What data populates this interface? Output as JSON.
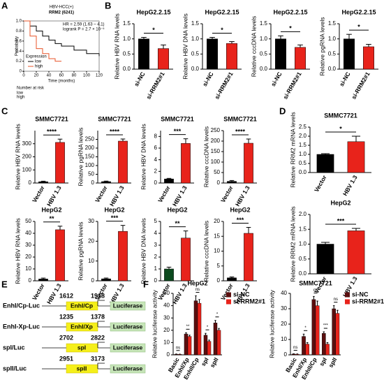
{
  "panel_letters": [
    "A",
    "B",
    "C",
    "D",
    "E",
    "F"
  ],
  "constructs": {
    "luciferase": "Luciferase",
    "items": [
      {
        "name": "EnhI/Cp-Luc",
        "start": "1612",
        "end": "1918",
        "element": "EnhI/Cp"
      },
      {
        "name": "EnhI-Xp-Luc",
        "start": "1235",
        "end": "1378",
        "element": "EnhI/Xp"
      },
      {
        "name": "spI/Luc",
        "start": "2702",
        "end": "2822",
        "element": "spI"
      },
      {
        "name": "spII/Luc",
        "start": "2951",
        "end": "3173",
        "element": "spII"
      }
    ]
  },
  "chart_data": [
    {
      "type": "line",
      "title": "HBV-HCC(+)",
      "subtitle": "RRM2 (6241)",
      "annotations": [
        "HR = 2.59 (1.63 – 4.1)",
        "logrank P = 2.7 × 10⁻⁵"
      ],
      "xlabel": "Time (months)",
      "ylabel": "Probability",
      "legend_title": "Expression",
      "footer": "Number at risk",
      "xlim": [
        0,
        120
      ],
      "xticks": [
        0,
        20,
        40,
        60,
        80,
        100,
        120
      ],
      "ylim": [
        0,
        1
      ],
      "yticks": [
        0,
        {
          "value": 0.2,
          "label": "0.2"
        },
        {
          "value": 0.4,
          "label": "0.4"
        },
        {
          "value": 0.6,
          "label": "0.6"
        },
        {
          "value": 0.8,
          "label": "0.8"
        },
        {
          "value": 1,
          "label": "1.0"
        }
      ],
      "series": [
        {
          "name": "low",
          "color": "#000000",
          "x": [
            0,
            10,
            20,
            30,
            40,
            50,
            60,
            80,
            100,
            120
          ],
          "values": [
            1,
            0.9,
            0.8,
            0.7,
            0.62,
            0.55,
            0.5,
            0.42,
            0.35,
            0.3
          ]
        },
        {
          "name": "high",
          "color": "#e8542a",
          "x": [
            0,
            10,
            20,
            30,
            40,
            50,
            60
          ],
          "values": [
            1,
            0.7,
            0.45,
            0.35,
            0.25,
            0.2,
            0.2
          ]
        }
      ]
    },
    {
      "type": "bar",
      "title": "HepG2.2.15",
      "ylabel": "Relative HBV RNA levels",
      "categories": [
        "si-NC",
        "si-RRM2#1"
      ],
      "values": [
        1.0,
        0.68
      ],
      "errors": [
        0.05,
        0.12
      ],
      "colors": [
        "#000000",
        "#e8231b"
      ],
      "annotations": [
        "*"
      ],
      "ylim": [
        0,
        1.5
      ],
      "yticks": [
        {
          "value": 0,
          "label": "0.0"
        },
        {
          "value": 0.5,
          "label": "0.5"
        },
        {
          "value": 1,
          "label": "1.0"
        },
        {
          "value": 1.5,
          "label": "1.5"
        }
      ]
    },
    {
      "type": "bar",
      "title": "HepG2.2.15",
      "ylabel": "Relative HBV DNA levels",
      "categories": [
        "si-NC",
        "si-RRM2#1"
      ],
      "values": [
        1.0,
        0.85
      ],
      "errors": [
        0.05,
        0.06
      ],
      "colors": [
        "#000000",
        "#e8231b"
      ],
      "annotations": [
        "*"
      ],
      "ylim": [
        0,
        1.5
      ],
      "yticks": [
        {
          "value": 0,
          "label": "0.0"
        },
        {
          "value": 0.5,
          "label": "0.5"
        },
        {
          "value": 1,
          "label": "1.0"
        },
        {
          "value": 1.5,
          "label": "1.5"
        }
      ]
    },
    {
      "type": "bar",
      "title": "HepG2.2.15",
      "ylabel": "Relative cccDNA levels",
      "categories": [
        "si-NC",
        "si-RRM2#1"
      ],
      "values": [
        1.0,
        0.72
      ],
      "errors": [
        0.1,
        0.08
      ],
      "colors": [
        "#000000",
        "#e8231b"
      ],
      "annotations": [
        "*"
      ],
      "ylim": [
        0,
        1.5
      ],
      "yticks": [
        {
          "value": 0,
          "label": "0.0"
        },
        {
          "value": 0.5,
          "label": "0.5"
        },
        {
          "value": 1,
          "label": "1.0"
        },
        {
          "value": 1.5,
          "label": "1.5"
        }
      ]
    },
    {
      "type": "bar",
      "title": "HepG2.2.15",
      "ylabel": "Relative pgRNA levels",
      "categories": [
        "si-NC",
        "si-RRM2#1"
      ],
      "values": [
        1.0,
        0.74
      ],
      "errors": [
        0.15,
        0.08
      ],
      "colors": [
        "#000000",
        "#e8231b"
      ],
      "annotations": [
        "*"
      ],
      "ylim": [
        0,
        1.5
      ],
      "yticks": [
        {
          "value": 0,
          "label": "0.0"
        },
        {
          "value": 0.5,
          "label": "0.5"
        },
        {
          "value": 1,
          "label": "1.0"
        },
        {
          "value": 1.5,
          "label": "1.5"
        }
      ]
    },
    {
      "type": "bar",
      "title": "SMMC7721",
      "ylabel": "Relative HBV RNA levels",
      "categories": [
        "Vector",
        "HBV 1.3"
      ],
      "values": [
        10,
        310
      ],
      "errors": [
        4,
        25
      ],
      "colors": [
        "#000000",
        "#e8231b"
      ],
      "annotations": [
        "****"
      ],
      "ylim": [
        0,
        400
      ],
      "yticks": [
        0,
        100,
        200,
        300
      ]
    },
    {
      "type": "bar",
      "title": "SMMC7721",
      "ylabel": "Relative pgRNA levels",
      "categories": [
        "Vector",
        "HBV 1.3"
      ],
      "values": [
        8,
        240
      ],
      "errors": [
        3,
        12
      ],
      "colors": [
        "#000000",
        "#e8231b"
      ],
      "annotations": [
        "****"
      ],
      "ylim": [
        0,
        300
      ],
      "yticks": [
        0,
        50,
        100,
        150,
        200,
        250
      ]
    },
    {
      "type": "bar",
      "title": "SMMC7721",
      "ylabel": "Relative HBV DNA levels",
      "categories": [
        "Vector",
        "HBV 1.3"
      ],
      "values": [
        0.7,
        6.8
      ],
      "errors": [
        0.1,
        0.8
      ],
      "colors": [
        "#000000",
        "#e8231b"
      ],
      "annotations": [
        "***"
      ],
      "ylim": [
        0,
        9
      ],
      "yticks": [
        0,
        2,
        4,
        6,
        8
      ]
    },
    {
      "type": "bar",
      "title": "SMMC7721",
      "ylabel": "Relative cccDNA levels",
      "categories": [
        "Vector",
        "HBV 1.3"
      ],
      "values": [
        8,
        190
      ],
      "errors": [
        4,
        20
      ],
      "colors": [
        "#000000",
        "#e8231b"
      ],
      "annotations": [
        "****"
      ],
      "ylim": [
        0,
        250
      ],
      "yticks": [
        0,
        50,
        100,
        150,
        200,
        250
      ]
    },
    {
      "type": "bar",
      "title": "HepG2",
      "ylabel": "Relative HBV RNA levels",
      "categories": [
        "Vector",
        "HBV 1.3"
      ],
      "values": [
        1.5,
        43
      ],
      "errors": [
        0.8,
        3
      ],
      "colors": [
        "#000000",
        "#e8231b"
      ],
      "annotations": [
        "**"
      ],
      "ylim": [
        0,
        50
      ],
      "yticks": [
        0,
        10,
        20,
        30,
        40,
        50
      ]
    },
    {
      "type": "bar",
      "title": "HepG2",
      "ylabel": "Relative pgRNA levels",
      "categories": [
        "Vector",
        "HBV 1.3"
      ],
      "values": [
        1,
        25
      ],
      "errors": [
        0.4,
        3
      ],
      "colors": [
        "#000000",
        "#e8231b"
      ],
      "annotations": [
        "***"
      ],
      "ylim": [
        0,
        30
      ],
      "yticks": [
        0,
        10,
        20,
        30
      ]
    },
    {
      "type": "bar",
      "title": "HepG2",
      "ylabel": "Relative HBV DNA levels",
      "categories": [
        "Vector",
        "HBV 1.3"
      ],
      "values": [
        1,
        3.6
      ],
      "errors": [
        0.15,
        0.6
      ],
      "colors": [
        "#0c4a1e",
        "#e8231b"
      ],
      "annotations": [
        "**"
      ],
      "ylim": [
        0,
        5
      ],
      "yticks": [
        0,
        1,
        2,
        3,
        4,
        5
      ]
    },
    {
      "type": "bar",
      "title": "HepG2",
      "ylabel": "Relative cccDNA levels",
      "categories": [
        "Vector",
        "HBV 1.3"
      ],
      "values": [
        1,
        16
      ],
      "errors": [
        0.3,
        2
      ],
      "colors": [
        "#000000",
        "#e8231b"
      ],
      "annotations": [
        "***"
      ],
      "ylim": [
        0,
        20
      ],
      "yticks": [
        0,
        5,
        10,
        15,
        20
      ]
    },
    {
      "type": "bar",
      "title": "SMMC7721",
      "ylabel": "Relative RRM2 mRNA levels",
      "categories": [
        "Vector",
        "HBV 1.3"
      ],
      "values": [
        1.0,
        1.7
      ],
      "errors": [
        0.04,
        0.3
      ],
      "colors": [
        "#000000",
        "#e8231b"
      ],
      "annotations": [
        "*"
      ],
      "ylim": [
        0,
        2.5
      ],
      "yticks": [
        {
          "value": 0,
          "label": "0.0"
        },
        {
          "value": 0.5,
          "label": "0.5"
        },
        {
          "value": 1,
          "label": "1.0"
        },
        {
          "value": 1.5,
          "label": "1.5"
        },
        {
          "value": 2,
          "label": "2.0"
        },
        {
          "value": 2.5,
          "label": "2.5"
        }
      ]
    },
    {
      "type": "bar",
      "title": "HepG2",
      "ylabel": "Relative RRM2 mRNA levels",
      "categories": [
        "Vector",
        "HBV 1.3"
      ],
      "values": [
        1.0,
        1.45
      ],
      "errors": [
        0.06,
        0.08
      ],
      "colors": [
        "#000000",
        "#e8231b"
      ],
      "annotations": [
        "***"
      ],
      "ylim": [
        0,
        2
      ],
      "yticks": [
        {
          "value": 0,
          "label": "0.0"
        },
        {
          "value": 0.5,
          "label": "0.5"
        },
        {
          "value": 1,
          "label": "1.0"
        },
        {
          "value": 1.5,
          "label": "1.5"
        },
        {
          "value": 2,
          "label": "2.0"
        }
      ]
    },
    {
      "type": "grouped_bar",
      "title": "HepG2",
      "ylabel": "Relative luciferase activity",
      "categories": [
        "Basic",
        "EnhI/Xp",
        "EnhII/Cp",
        "spI",
        "spII"
      ],
      "annotations": [
        "ns",
        "**",
        "ns",
        "*",
        "*"
      ],
      "ylim": [
        0,
        50
      ],
      "yticks": [
        0,
        10,
        20,
        30,
        40,
        50
      ],
      "series": [
        {
          "name": "si-NC",
          "color": "#5b0f0f",
          "values": [
            0.5,
            17,
            44,
            16,
            26
          ],
          "errors": [
            0.2,
            1,
            4,
            1.5,
            2
          ]
        },
        {
          "name": "si-RRM2#1",
          "color": "#e8231b",
          "values": [
            0.4,
            15,
            42,
            11,
            20
          ],
          "errors": [
            0.2,
            1,
            3,
            1,
            1.5
          ]
        }
      ]
    },
    {
      "type": "grouped_bar",
      "title": "SMMC7721",
      "ylabel": "Relative luciferase activity",
      "categories": [
        "Basic",
        "EnhI/Xp",
        "EnhII/Cp",
        "spI",
        "spII"
      ],
      "annotations": [
        "ns",
        "*",
        "ns",
        "***",
        "ns"
      ],
      "ylim": [
        0,
        40
      ],
      "yticks": [
        0,
        10,
        20,
        30,
        40
      ],
      "series": [
        {
          "name": "si-NC",
          "color": "#5b0f0f",
          "values": [
            0.5,
            12,
            36,
            14,
            30
          ],
          "errors": [
            0.2,
            1.5,
            2,
            1,
            2
          ]
        },
        {
          "name": "si-RRM2#1",
          "color": "#e8231b",
          "values": [
            0.4,
            7,
            32,
            7,
            27
          ],
          "errors": [
            0.2,
            1,
            3,
            1,
            2
          ]
        }
      ]
    }
  ]
}
